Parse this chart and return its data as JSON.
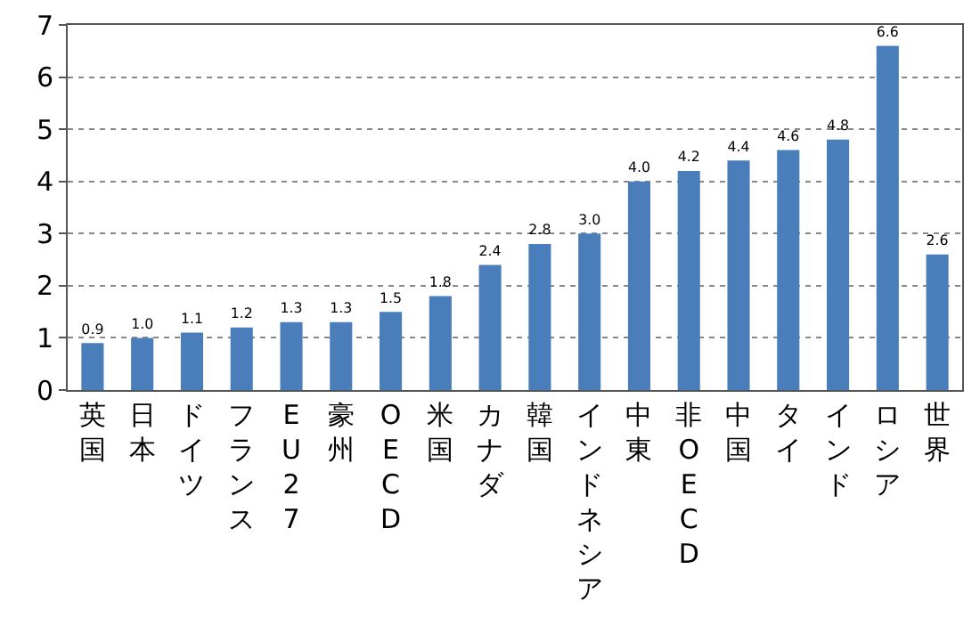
{
  "chart_data": {
    "type": "bar",
    "categories": [
      "英国",
      "日本",
      "ドイツ",
      "フランス",
      "EU27",
      "豪州",
      "OECD",
      "米国",
      "カナダ",
      "韓国",
      "インドネシア",
      "中東",
      "非OECD",
      "中国",
      "タイ",
      "インド",
      "ロシア",
      "世界"
    ],
    "values": [
      0.9,
      1.0,
      1.1,
      1.2,
      1.3,
      1.3,
      1.5,
      1.8,
      2.4,
      2.8,
      3.0,
      4.0,
      4.2,
      4.4,
      4.6,
      4.8,
      6.6,
      2.6
    ],
    "value_labels": [
      "0.9",
      "1.0",
      "1.1",
      "1.2",
      "1.3",
      "1.3",
      "1.5",
      "1.8",
      "2.4",
      "2.8",
      "3.0",
      "4.0",
      "4.2",
      "4.4",
      "4.6",
      "4.8",
      "6.6",
      "2.6"
    ],
    "color": "#4a7ebb",
    "ylim": [
      0,
      7
    ],
    "yticks": [
      0,
      1,
      2,
      3,
      4,
      5,
      6,
      7
    ],
    "grid": "y"
  }
}
